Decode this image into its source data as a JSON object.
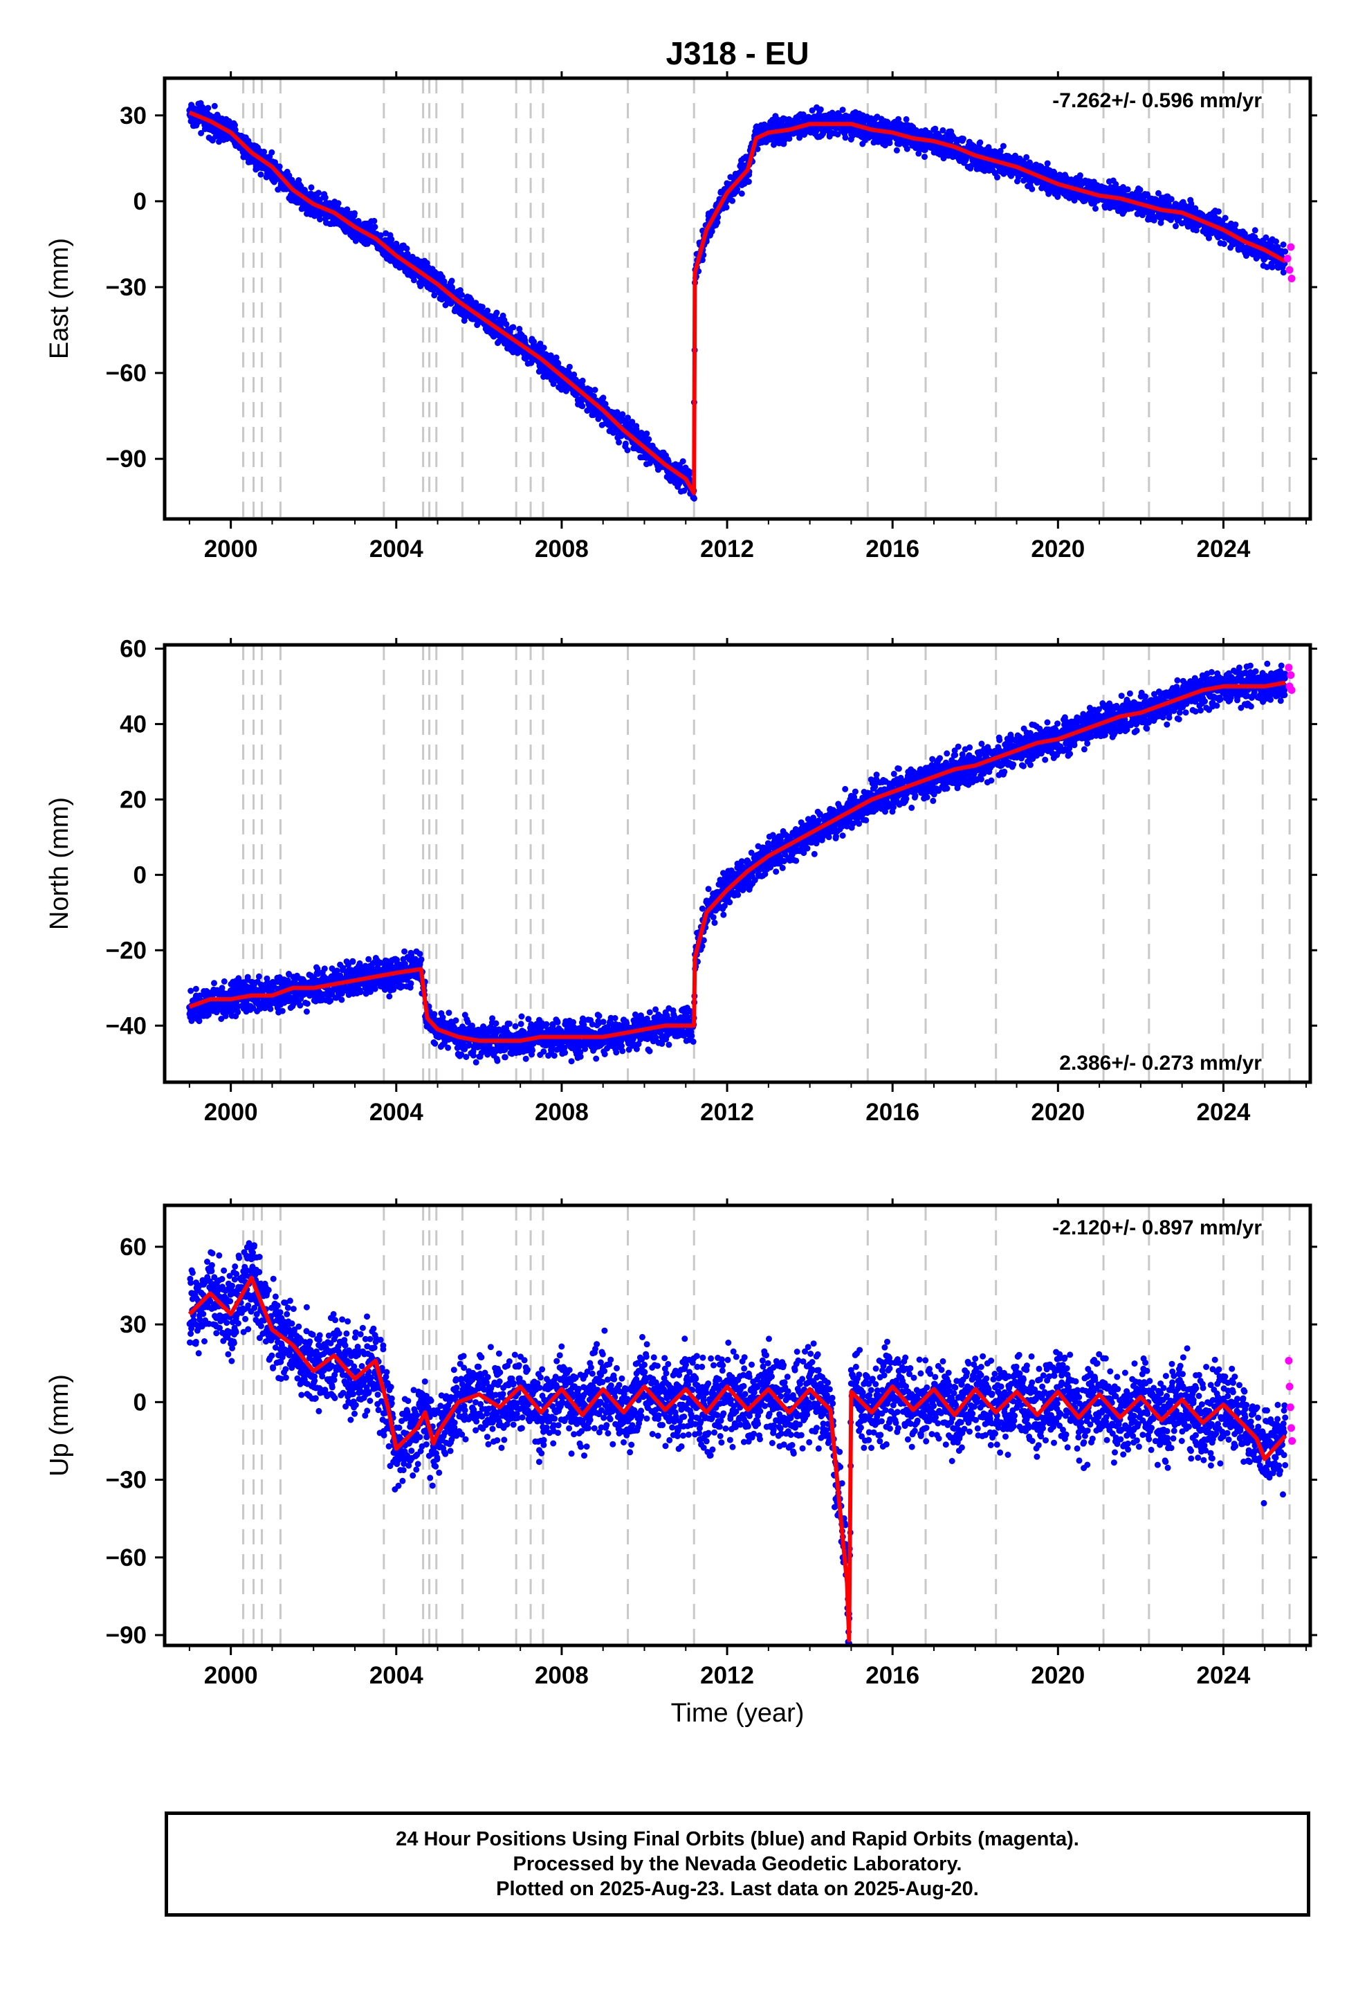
{
  "title": "J318 - EU",
  "xlabel": "Time (year)",
  "x_ticks": [
    "2000",
    "2004",
    "2008",
    "2012",
    "2016",
    "2020",
    "2024"
  ],
  "colors": {
    "final_orbits": "#0000ff",
    "rapid_orbits": "#ff00ff",
    "model": "#ff0000",
    "event_lines": "#c8c8c8"
  },
  "event_lines_years": [
    2000.3,
    2000.55,
    2000.75,
    2001.2,
    2003.7,
    2004.65,
    2004.8,
    2004.97,
    2005.6,
    2006.9,
    2007.25,
    2007.55,
    2009.6,
    2011.2,
    2015.4,
    2016.8,
    2018.5,
    2021.1,
    2022.2,
    2024.0,
    2024.95,
    2025.6
  ],
  "chart_data": [
    {
      "type": "scatter",
      "ylabel": "East (mm)",
      "y_ticks": [
        "30",
        "0",
        "−30",
        "−60",
        "−90"
      ],
      "rate_label": "-7.262+/- 0.596 mm/yr",
      "rate_position": "top-right",
      "xlim": [
        1998.4,
        2026.1
      ],
      "ylim": [
        -111,
        43
      ],
      "series": [
        {
          "values": [
            [
              1999.0,
              31
            ],
            [
              1999.5,
              28
            ],
            [
              2000.0,
              24
            ],
            [
              2000.5,
              17
            ],
            [
              2001.0,
              12
            ],
            [
              2001.5,
              4
            ],
            [
              2002.0,
              -1
            ],
            [
              2002.5,
              -4
            ],
            [
              2003.0,
              -9
            ],
            [
              2003.5,
              -13
            ],
            [
              2004.0,
              -19
            ],
            [
              2004.5,
              -24
            ],
            [
              2005.0,
              -29
            ],
            [
              2005.5,
              -35
            ],
            [
              2006.0,
              -40
            ],
            [
              2006.5,
              -45
            ],
            [
              2007.0,
              -50
            ],
            [
              2007.5,
              -55
            ],
            [
              2008.0,
              -61
            ],
            [
              2008.5,
              -67
            ],
            [
              2009.0,
              -73
            ],
            [
              2009.5,
              -80
            ],
            [
              2010.0,
              -86
            ],
            [
              2010.5,
              -92
            ],
            [
              2011.0,
              -97
            ],
            [
              2011.2,
              -102
            ],
            [
              2011.22,
              -25
            ],
            [
              2011.5,
              -10
            ],
            [
              2012.0,
              3
            ],
            [
              2012.5,
              11
            ],
            [
              2012.7,
              22
            ],
            [
              2013.0,
              24
            ],
            [
              2013.5,
              25
            ],
            [
              2014.0,
              27
            ],
            [
              2014.5,
              27
            ],
            [
              2015.0,
              27
            ],
            [
              2015.5,
              25
            ],
            [
              2016.0,
              24
            ],
            [
              2016.5,
              22
            ],
            [
              2017.0,
              21
            ],
            [
              2017.5,
              19
            ],
            [
              2018.0,
              16
            ],
            [
              2018.5,
              14
            ],
            [
              2019.0,
              12
            ],
            [
              2019.5,
              9
            ],
            [
              2020.0,
              6
            ],
            [
              2020.5,
              4
            ],
            [
              2021.0,
              2
            ],
            [
              2021.5,
              1
            ],
            [
              2022.0,
              -1
            ],
            [
              2022.5,
              -3
            ],
            [
              2023.0,
              -4
            ],
            [
              2023.5,
              -7
            ],
            [
              2024.0,
              -10
            ],
            [
              2024.5,
              -14
            ],
            [
              2025.0,
              -17
            ],
            [
              2025.5,
              -21
            ]
          ]
        },
        {
          "values": [
            [
              2025.55,
              -20
            ],
            [
              2025.6,
              -24
            ],
            [
              2025.63,
              -16
            ],
            [
              2025.65,
              -27
            ]
          ]
        }
      ]
    },
    {
      "type": "scatter",
      "ylabel": "North (mm)",
      "y_ticks": [
        "60",
        "40",
        "20",
        "0",
        "−20",
        "−40"
      ],
      "rate_label": "2.386+/- 0.273 mm/yr",
      "rate_position": "bottom-right",
      "xlim": [
        1998.4,
        2026.1
      ],
      "ylim": [
        -55,
        61
      ],
      "series": [
        {
          "values": [
            [
              1999.0,
              -35
            ],
            [
              1999.5,
              -33
            ],
            [
              2000.0,
              -33
            ],
            [
              2000.5,
              -32
            ],
            [
              2001.0,
              -32
            ],
            [
              2001.5,
              -30
            ],
            [
              2002.0,
              -30
            ],
            [
              2002.5,
              -29
            ],
            [
              2003.0,
              -28
            ],
            [
              2003.5,
              -27
            ],
            [
              2004.0,
              -26
            ],
            [
              2004.6,
              -25
            ],
            [
              2004.75,
              -38
            ],
            [
              2005.0,
              -41
            ],
            [
              2005.5,
              -43
            ],
            [
              2006.0,
              -44
            ],
            [
              2006.5,
              -44
            ],
            [
              2007.0,
              -44
            ],
            [
              2007.5,
              -43
            ],
            [
              2008.0,
              -43
            ],
            [
              2008.5,
              -43
            ],
            [
              2009.0,
              -43
            ],
            [
              2009.5,
              -42
            ],
            [
              2010.0,
              -41
            ],
            [
              2010.5,
              -40
            ],
            [
              2011.0,
              -40
            ],
            [
              2011.2,
              -40
            ],
            [
              2011.22,
              -22
            ],
            [
              2011.5,
              -10
            ],
            [
              2012.0,
              -4
            ],
            [
              2012.5,
              1
            ],
            [
              2013.0,
              5
            ],
            [
              2013.5,
              8
            ],
            [
              2014.0,
              11
            ],
            [
              2014.5,
              14
            ],
            [
              2015.0,
              17
            ],
            [
              2015.5,
              20
            ],
            [
              2016.0,
              22
            ],
            [
              2016.5,
              24
            ],
            [
              2017.0,
              26
            ],
            [
              2017.5,
              28
            ],
            [
              2018.0,
              29
            ],
            [
              2018.5,
              31
            ],
            [
              2019.0,
              33
            ],
            [
              2019.5,
              35
            ],
            [
              2020.0,
              36
            ],
            [
              2020.5,
              38
            ],
            [
              2021.0,
              40
            ],
            [
              2021.5,
              42
            ],
            [
              2022.0,
              43
            ],
            [
              2022.5,
              45
            ],
            [
              2023.0,
              47
            ],
            [
              2023.5,
              49
            ],
            [
              2024.0,
              50
            ],
            [
              2024.5,
              50
            ],
            [
              2025.0,
              50
            ],
            [
              2025.5,
              51
            ]
          ]
        },
        {
          "values": [
            [
              2025.58,
              55
            ],
            [
              2025.6,
              50
            ],
            [
              2025.63,
              53
            ],
            [
              2025.65,
              49
            ]
          ]
        }
      ]
    },
    {
      "type": "scatter",
      "ylabel": "Up (mm)",
      "y_ticks": [
        "60",
        "30",
        "0",
        "−30",
        "−60",
        "−90"
      ],
      "rate_label": "-2.120+/- 0.897 mm/yr",
      "rate_position": "top-right",
      "xlim": [
        1998.4,
        2026.1
      ],
      "ylim": [
        -94,
        76
      ],
      "series": [
        {
          "values": [
            [
              1999.0,
              34
            ],
            [
              1999.5,
              42
            ],
            [
              2000.0,
              34
            ],
            [
              2000.5,
              48
            ],
            [
              2001.0,
              28
            ],
            [
              2001.5,
              22
            ],
            [
              2002.0,
              12
            ],
            [
              2002.5,
              18
            ],
            [
              2003.0,
              9
            ],
            [
              2003.5,
              16
            ],
            [
              2003.8,
              -2
            ],
            [
              2004.0,
              -18
            ],
            [
              2004.5,
              -10
            ],
            [
              2004.7,
              -4
            ],
            [
              2004.9,
              -16
            ],
            [
              2005.0,
              -12
            ],
            [
              2005.5,
              0
            ],
            [
              2006.0,
              3
            ],
            [
              2006.5,
              -2
            ],
            [
              2007.0,
              6
            ],
            [
              2007.5,
              -4
            ],
            [
              2008.0,
              5
            ],
            [
              2008.5,
              -5
            ],
            [
              2009.0,
              5
            ],
            [
              2009.5,
              -4
            ],
            [
              2010.0,
              6
            ],
            [
              2010.5,
              -3
            ],
            [
              2011.0,
              5
            ],
            [
              2011.5,
              -4
            ],
            [
              2012.0,
              6
            ],
            [
              2012.5,
              -3
            ],
            [
              2013.0,
              5
            ],
            [
              2013.5,
              -4
            ],
            [
              2014.0,
              5
            ],
            [
              2014.5,
              -3
            ],
            [
              2014.9,
              -70
            ],
            [
              2014.95,
              -92
            ],
            [
              2015.0,
              4
            ],
            [
              2015.5,
              -4
            ],
            [
              2016.0,
              6
            ],
            [
              2016.5,
              -3
            ],
            [
              2017.0,
              5
            ],
            [
              2017.5,
              -5
            ],
            [
              2018.0,
              5
            ],
            [
              2018.5,
              -4
            ],
            [
              2019.0,
              4
            ],
            [
              2019.5,
              -5
            ],
            [
              2020.0,
              4
            ],
            [
              2020.5,
              -6
            ],
            [
              2021.0,
              3
            ],
            [
              2021.5,
              -6
            ],
            [
              2022.0,
              2
            ],
            [
              2022.5,
              -7
            ],
            [
              2023.0,
              1
            ],
            [
              2023.5,
              -8
            ],
            [
              2024.0,
              -1
            ],
            [
              2024.5,
              -9
            ],
            [
              2024.8,
              -14
            ],
            [
              2025.0,
              -22
            ],
            [
              2025.5,
              -13
            ]
          ]
        },
        {
          "values": [
            [
              2025.58,
              16
            ],
            [
              2025.6,
              6
            ],
            [
              2025.62,
              -2
            ],
            [
              2025.64,
              -10
            ],
            [
              2025.66,
              -15
            ]
          ]
        }
      ]
    }
  ],
  "footer": {
    "line1": "24 Hour Positions Using Final Orbits (blue) and Rapid Orbits (magenta).",
    "line2": "Processed by the Nevada Geodetic Laboratory.",
    "line3": "Plotted on 2025-Aug-23. Last data on 2025-Aug-20."
  }
}
